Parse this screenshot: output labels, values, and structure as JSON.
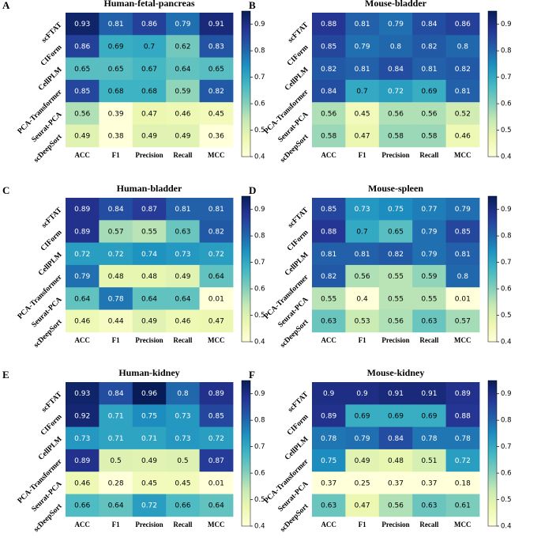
{
  "figure": {
    "colormap": [
      "#ffffd9",
      "#edf8b1",
      "#c7e9b4",
      "#7fcdbb",
      "#41b6c4",
      "#1d91c0",
      "#225ea8",
      "#253494",
      "#081d58"
    ],
    "dark_text_color": "#ffffff",
    "light_text_color": "#000000"
  },
  "chart_data": [
    {
      "type": "heatmap",
      "letter": "A",
      "title": "Human-fetal-pancreas",
      "rows": [
        "scFTAT",
        "CIForm",
        "CellPLM",
        "PCA-Transformer",
        "Seurat-PCA",
        "scDeepSort"
      ],
      "cols": [
        "ACC",
        "F1",
        "Precision",
        "Recall",
        "MCC"
      ],
      "values": [
        [
          0.93,
          0.81,
          0.86,
          0.79,
          0.91
        ],
        [
          0.86,
          0.69,
          0.7,
          0.62,
          0.83
        ],
        [
          0.65,
          0.65,
          0.67,
          0.64,
          0.65
        ],
        [
          0.85,
          0.68,
          0.68,
          0.59,
          0.82
        ],
        [
          0.56,
          0.39,
          0.47,
          0.46,
          0.45
        ],
        [
          0.49,
          0.38,
          0.49,
          0.49,
          0.36
        ]
      ],
      "vmin": 0.4,
      "vmax": 0.95,
      "colorbar_ticks": [
        "0.4",
        "0.5",
        "0.6",
        "0.7",
        "0.8",
        "0.9"
      ]
    },
    {
      "type": "heatmap",
      "letter": "B",
      "title": "Mouse-bladder",
      "rows": [
        "scFTAT",
        "CIForm",
        "CellPLM",
        "PCA-Transformer",
        "Seurat-PCA",
        "scDeepSort"
      ],
      "cols": [
        "ACC",
        "F1",
        "Precision",
        "Recall",
        "MCC"
      ],
      "values": [
        [
          0.88,
          0.81,
          0.79,
          0.84,
          0.86
        ],
        [
          0.85,
          0.79,
          0.8,
          0.82,
          0.8
        ],
        [
          0.82,
          0.81,
          0.84,
          0.81,
          0.82
        ],
        [
          0.84,
          0.7,
          0.72,
          0.69,
          0.81
        ],
        [
          0.56,
          0.45,
          0.56,
          0.56,
          0.52
        ],
        [
          0.58,
          0.47,
          0.58,
          0.58,
          0.46
        ]
      ],
      "vmin": 0.4,
      "vmax": 0.95,
      "colorbar_ticks": [
        "0.4",
        "0.5",
        "0.6",
        "0.7",
        "0.8",
        "0.9"
      ]
    },
    {
      "type": "heatmap",
      "letter": "C",
      "title": "Human-bladder",
      "rows": [
        "scFTAT",
        "CIForm",
        "CellPLM",
        "PCA-Transformer",
        "Seurat-PCA",
        "scDeepSort"
      ],
      "cols": [
        "ACC",
        "F1",
        "Precision",
        "Recall",
        "MCC"
      ],
      "values": [
        [
          0.89,
          0.84,
          0.87,
          0.81,
          0.81
        ],
        [
          0.89,
          0.57,
          0.55,
          0.63,
          0.82
        ],
        [
          0.72,
          0.72,
          0.74,
          0.73,
          0.72
        ],
        [
          0.79,
          0.48,
          0.48,
          0.49,
          0.64
        ],
        [
          0.64,
          0.78,
          0.64,
          0.64,
          0.01
        ],
        [
          0.46,
          0.44,
          0.49,
          0.46,
          0.47
        ]
      ],
      "vmin": 0.4,
      "vmax": 0.95,
      "colorbar_ticks": [
        "0.4",
        "0.5",
        "0.6",
        "0.7",
        "0.8",
        "0.9"
      ]
    },
    {
      "type": "heatmap",
      "letter": "D",
      "title": "Mouse-spleen",
      "rows": [
        "scFTAT",
        "CIForm",
        "CellPLM",
        "PCA-Transformer",
        "Seurat-PCA",
        "scDeepSort"
      ],
      "cols": [
        "ACC",
        "F1",
        "Precision",
        "Recall",
        "MCC"
      ],
      "values": [
        [
          0.85,
          0.73,
          0.75,
          0.77,
          0.79
        ],
        [
          0.88,
          0.7,
          0.65,
          0.79,
          0.85
        ],
        [
          0.81,
          0.81,
          0.82,
          0.79,
          0.81
        ],
        [
          0.82,
          0.56,
          0.55,
          0.59,
          0.8
        ],
        [
          0.55,
          0.4,
          0.55,
          0.55,
          0.01
        ],
        [
          0.63,
          0.53,
          0.56,
          0.63,
          0.57
        ]
      ],
      "vmin": 0.4,
      "vmax": 0.95,
      "colorbar_ticks": [
        "0.4",
        "0.5",
        "0.6",
        "0.7",
        "0.8",
        "0.9"
      ]
    },
    {
      "type": "heatmap",
      "letter": "E",
      "title": "Human-kidney",
      "rows": [
        "scFTAT",
        "CIForm",
        "CellPLM",
        "PCA-Transformer",
        "Seurat-PCA",
        "scDeepSort"
      ],
      "cols": [
        "ACC",
        "F1",
        "Precision",
        "Recall",
        "MCC"
      ],
      "values": [
        [
          0.93,
          0.84,
          0.96,
          0.8,
          0.89
        ],
        [
          0.92,
          0.71,
          0.75,
          0.73,
          0.85
        ],
        [
          0.73,
          0.71,
          0.71,
          0.73,
          0.72
        ],
        [
          0.89,
          0.5,
          0.49,
          0.5,
          0.87
        ],
        [
          0.46,
          0.28,
          0.45,
          0.45,
          0.01
        ],
        [
          0.66,
          0.64,
          0.72,
          0.66,
          0.64
        ]
      ],
      "vmin": 0.4,
      "vmax": 0.95,
      "colorbar_ticks": [
        "0.4",
        "0.5",
        "0.6",
        "0.7",
        "0.8",
        "0.9"
      ]
    },
    {
      "type": "heatmap",
      "letter": "F",
      "title": "Mouse-kidney",
      "rows": [
        "scFTAT",
        "CIForm",
        "CellPLM",
        "PCA-Transformer",
        "Seurat-PCA",
        "scDeepSort"
      ],
      "cols": [
        "ACC",
        "F1",
        "Precision",
        "Recall",
        "MCC"
      ],
      "values": [
        [
          0.9,
          0.9,
          0.91,
          0.91,
          0.89
        ],
        [
          0.89,
          0.69,
          0.69,
          0.69,
          0.88
        ],
        [
          0.78,
          0.79,
          0.84,
          0.78,
          0.78
        ],
        [
          0.75,
          0.49,
          0.48,
          0.51,
          0.72
        ],
        [
          0.37,
          0.25,
          0.37,
          0.37,
          0.18
        ],
        [
          0.63,
          0.47,
          0.56,
          0.63,
          0.61
        ]
      ],
      "vmin": 0.4,
      "vmax": 0.95,
      "colorbar_ticks": [
        "0.4",
        "0.5",
        "0.6",
        "0.7",
        "0.8",
        "0.9"
      ]
    }
  ]
}
